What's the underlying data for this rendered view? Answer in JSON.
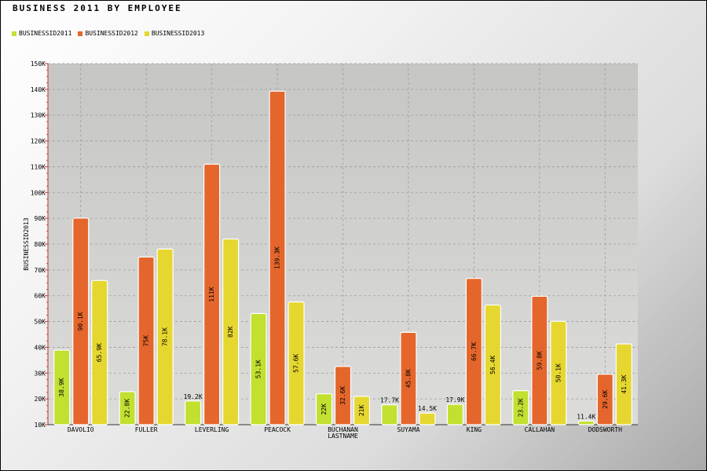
{
  "chart_data": {
    "type": "bar",
    "title": "Business 2011 by  Employee",
    "ylabel": "BUSINESSID2013",
    "xlabel": "",
    "ylim": [
      10000,
      150000
    ],
    "y_ticks": [
      10000,
      20000,
      30000,
      40000,
      50000,
      60000,
      70000,
      80000,
      90000,
      100000,
      110000,
      120000,
      130000,
      140000,
      150000
    ],
    "y_tick_labels": [
      "10K",
      "20K",
      "30K",
      "40K",
      "50K",
      "60K",
      "70K",
      "80K",
      "90K",
      "100K",
      "110K",
      "120K",
      "130K",
      "140K",
      "150K"
    ],
    "grid": true,
    "legend_position": "top-left",
    "categories": [
      "DAVOLIO",
      "FULLER",
      "LEVERLING",
      "PEACOCK",
      "BUCHANAN LASTNAME",
      "SUYAMA",
      "KING",
      "CALLAHAN",
      "DODSWORTH"
    ],
    "series": [
      {
        "name": "BUSINESSID2011",
        "color": "#c2e030",
        "values": [
          38900,
          22800,
          19200,
          53100,
          22000,
          17700,
          17900,
          23200,
          11400
        ],
        "labels": [
          "38.9K",
          "22.8K",
          "19.2K",
          "53.1K",
          "22K",
          "17.7K",
          "17.9K",
          "23.2K",
          "11.4K"
        ]
      },
      {
        "name": "BUSINESSID2012",
        "color": "#e5662c",
        "values": [
          90100,
          75000,
          111000,
          139300,
          32600,
          45800,
          66700,
          59800,
          29600
        ],
        "labels": [
          "90.1K",
          "75K",
          "111K",
          "139.3K",
          "32.6K",
          "45.8K",
          "66.7K",
          "59.8K",
          "29.6K"
        ]
      },
      {
        "name": "BUSINESSID2013",
        "color": "#e5d72f",
        "values": [
          65900,
          78100,
          82000,
          57600,
          21000,
          14500,
          56400,
          50100,
          41300
        ],
        "labels": [
          "65.9K",
          "78.1K",
          "82K",
          "57.6K",
          "21K",
          "14.5K",
          "56.4K",
          "50.1K",
          "41.3K"
        ]
      }
    ]
  }
}
